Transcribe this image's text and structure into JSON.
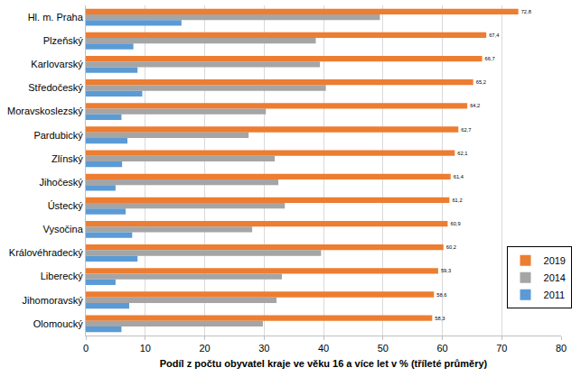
{
  "chart_data": {
    "type": "bar",
    "orientation": "horizontal",
    "x_label": "Podíl z počtu obyvatel kraje ve věku 16 a více let v % (tříleté průměry)",
    "categories": [
      "Hl. m. Praha",
      "Plzeňský",
      "Karlovarský",
      "Středočeský",
      "Moravskoslezský",
      "Pardubický",
      "Zlínský",
      "Jihočeský",
      "Ústecký",
      "Vysočina",
      "Královéhradecký",
      "Liberecký",
      "Jihomoravský",
      "Olomoucký"
    ],
    "series": [
      {
        "name": "2019",
        "color": "#ed7d31",
        "data_labels": true,
        "values": [
          72.8,
          67.4,
          66.7,
          65.2,
          64.2,
          62.7,
          62.1,
          61.4,
          61.2,
          60.9,
          60.2,
          59.3,
          58.6,
          58.3
        ],
        "value_labels": [
          "72,8",
          "67,4",
          "66,7",
          "65,2",
          "64,2",
          "62,7",
          "62,1",
          "61,4",
          "61,2",
          "60,9",
          "60,2",
          "59,3",
          "58,6",
          "58,3"
        ]
      },
      {
        "name": "2014",
        "color": "#a5a5a5",
        "values": [
          49.5,
          38.7,
          39.4,
          40.4,
          30.3,
          27.4,
          31.8,
          32.4,
          33.5,
          28.0,
          39.6,
          33.0,
          32.1,
          29.8
        ]
      },
      {
        "name": "2011",
        "color": "#5b9bd5",
        "values": [
          16.1,
          8.0,
          8.7,
          9.5,
          6.0,
          7.0,
          6.1,
          5.0,
          6.7,
          7.8,
          8.7,
          5.0,
          7.3,
          6.0
        ]
      }
    ],
    "xlim": [
      0,
      80
    ],
    "xticks": [
      0,
      10,
      20,
      30,
      40,
      50,
      60,
      70,
      80
    ],
    "grid": true,
    "legend": "right"
  }
}
